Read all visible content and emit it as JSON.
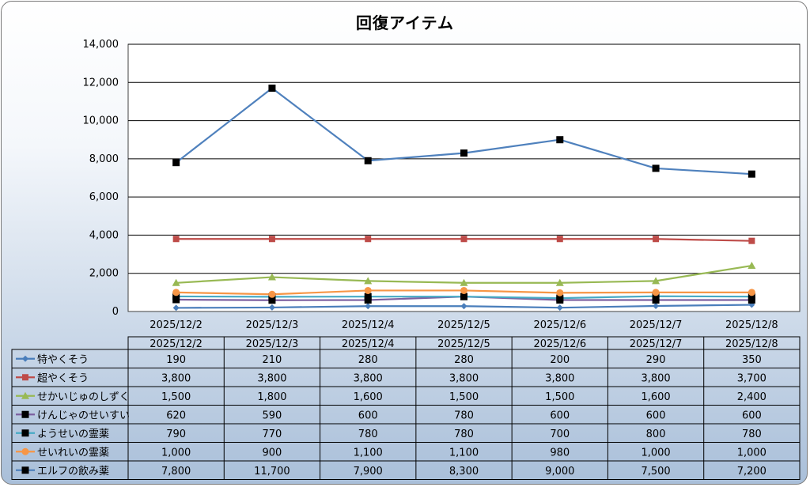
{
  "chart_data": {
    "type": "line",
    "title": "回復アイテム",
    "categories": [
      "2025/12/2",
      "2025/12/3",
      "2025/12/4",
      "2025/12/5",
      "2025/12/6",
      "2025/12/7",
      "2025/12/8"
    ],
    "ylim": [
      0,
      14000
    ],
    "yticks": [
      "0",
      "2,000",
      "4,000",
      "6,000",
      "8,000",
      "10,000",
      "12,000",
      "14,000"
    ],
    "grid": true,
    "legend": "data-table",
    "series": [
      {
        "name": "特やくそう",
        "values": [
          190,
          210,
          280,
          280,
          200,
          290,
          350
        ],
        "labels": [
          "190",
          "210",
          "280",
          "280",
          "200",
          "290",
          "350"
        ],
        "color": "#4a7ebb",
        "marker": "diamond"
      },
      {
        "name": "超やくそう",
        "values": [
          3800,
          3800,
          3800,
          3800,
          3800,
          3800,
          3700
        ],
        "labels": [
          "3,800",
          "3,800",
          "3,800",
          "3,800",
          "3,800",
          "3,800",
          "3,700"
        ],
        "color": "#be4b48",
        "marker": "square"
      },
      {
        "name": "せかいじゅのしずく",
        "values": [
          1500,
          1800,
          1600,
          1500,
          1500,
          1600,
          2400
        ],
        "labels": [
          "1,500",
          "1,800",
          "1,600",
          "1,500",
          "1,500",
          "1,600",
          "2,400"
        ],
        "color": "#98b954",
        "marker": "triangle"
      },
      {
        "name": "けんじゃのせいすい",
        "values": [
          620,
          590,
          600,
          780,
          600,
          600,
          600
        ],
        "labels": [
          "620",
          "590",
          "600",
          "780",
          "600",
          "600",
          "600"
        ],
        "color": "#7d60a0",
        "marker": "square-black"
      },
      {
        "name": "ようせいの霊薬",
        "values": [
          790,
          770,
          780,
          780,
          700,
          800,
          780
        ],
        "labels": [
          "790",
          "770",
          "780",
          "780",
          "700",
          "800",
          "780"
        ],
        "color": "#46aac5",
        "marker": "square-black"
      },
      {
        "name": "せいれいの霊薬",
        "values": [
          1000,
          900,
          1100,
          1100,
          980,
          1000,
          1000
        ],
        "labels": [
          "1,000",
          "900",
          "1,100",
          "1,100",
          "980",
          "1,000",
          "1,000"
        ],
        "color": "#f79646",
        "marker": "circle"
      },
      {
        "name": "エルフの飲み薬",
        "values": [
          7800,
          11700,
          7900,
          8300,
          9000,
          7500,
          7200
        ],
        "labels": [
          "7,800",
          "11,700",
          "7,900",
          "8,300",
          "9,000",
          "7,500",
          "7,200"
        ],
        "color": "#4f81bd",
        "marker": "square-black"
      }
    ]
  }
}
